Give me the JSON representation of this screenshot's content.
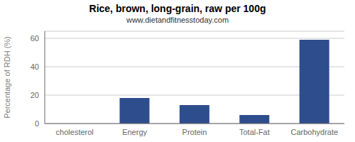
{
  "chart_data": {
    "type": "bar",
    "title": "Rice, brown, long-grain, raw per 100g",
    "subtitle": "www.dietandfitnesstoday.com",
    "categories": [
      "cholesterol",
      "Energy",
      "Protein",
      "Total-Fat",
      "Carbohydrate"
    ],
    "values": [
      0,
      18,
      13,
      6,
      59
    ],
    "color": "#2e4d8c",
    "ylabel": "Percentage of RDH (%)",
    "ylim": [
      0,
      65
    ],
    "yticks": [
      0,
      20,
      40,
      60
    ],
    "grid": true
  }
}
